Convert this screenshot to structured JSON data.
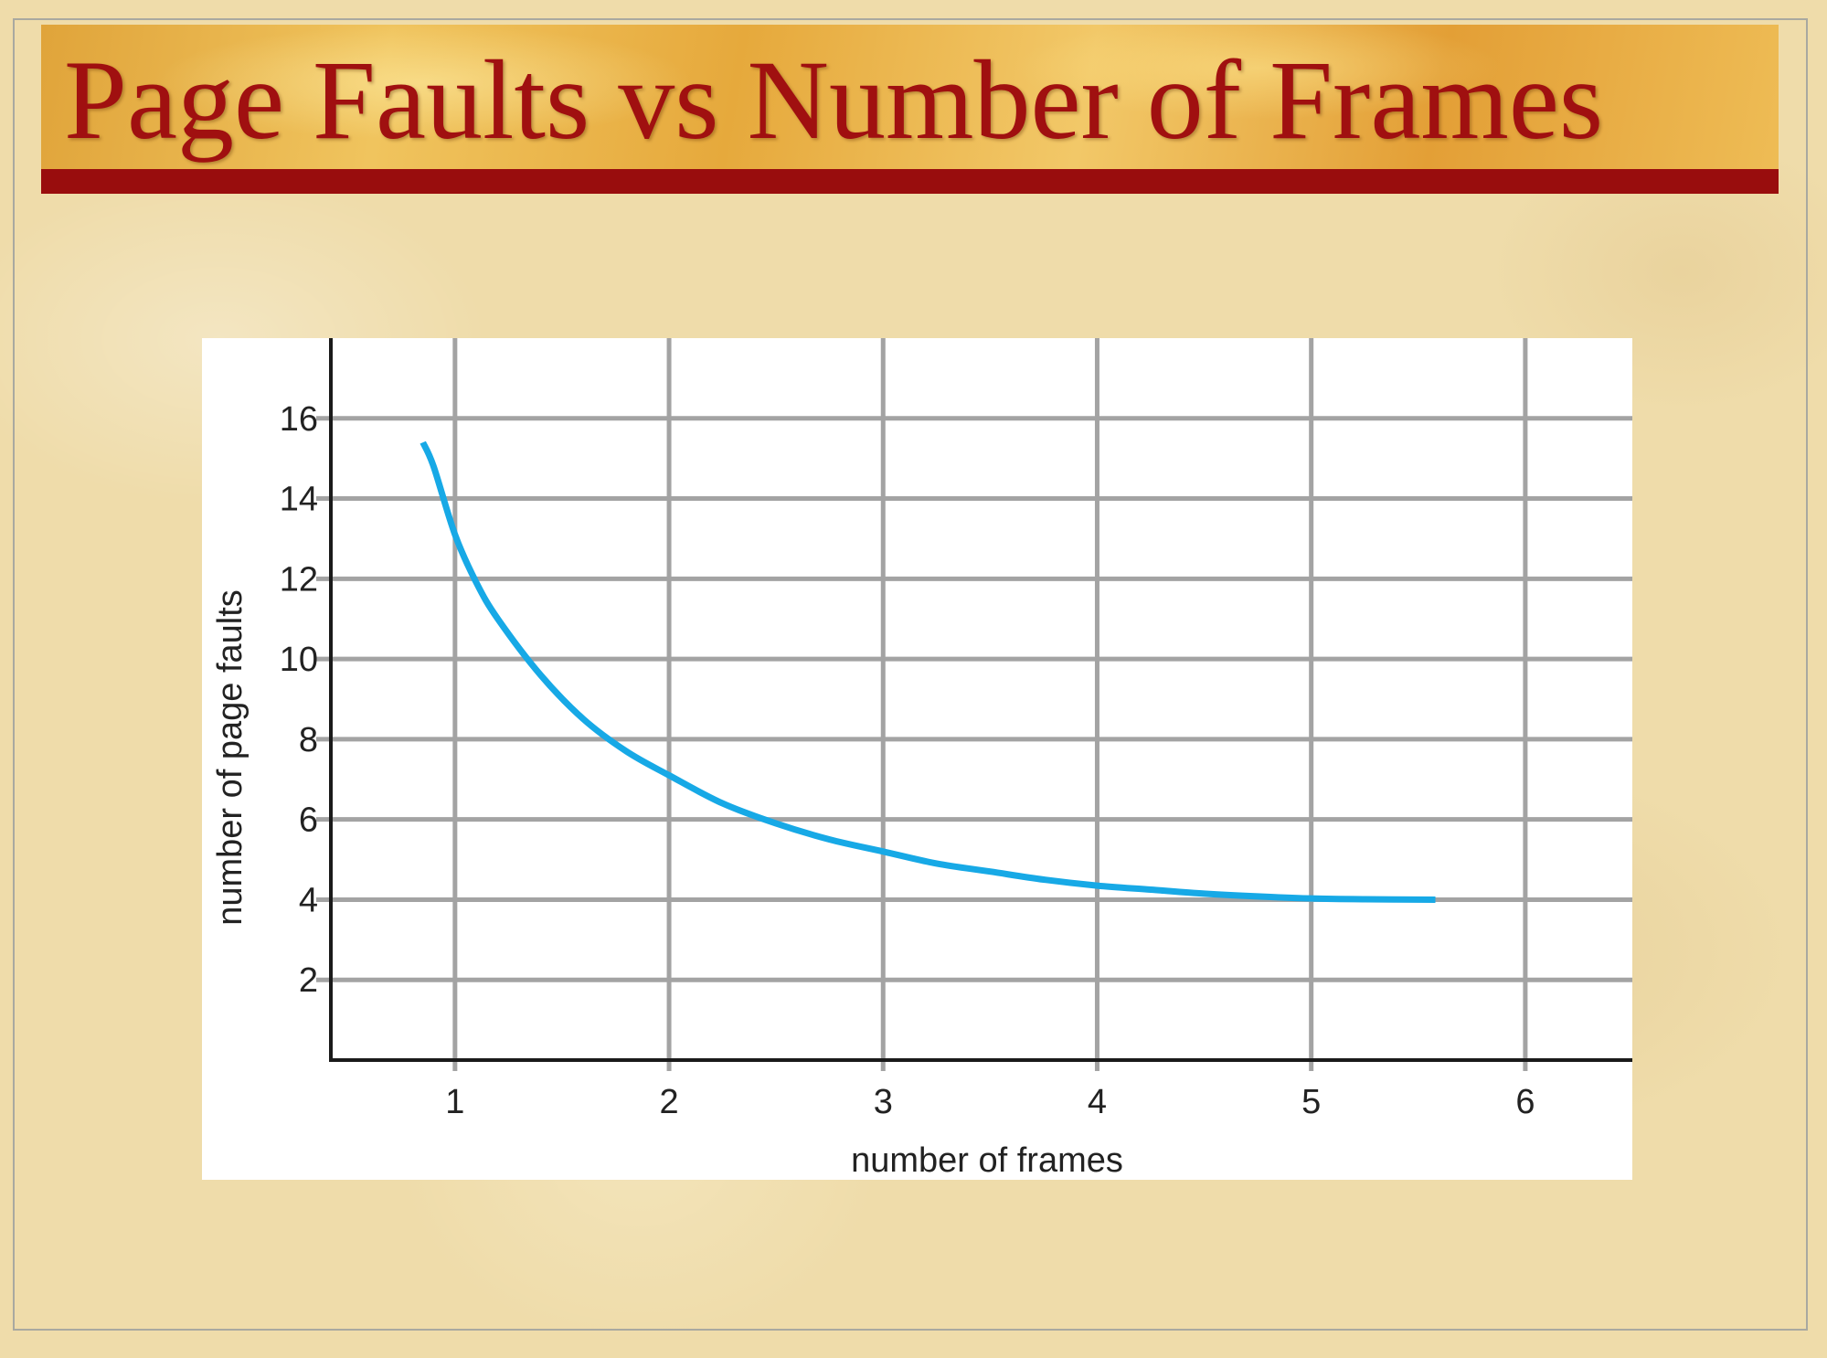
{
  "slide": {
    "title": "Page Faults vs Number of Frames"
  },
  "colors": {
    "title_text": "#a01010",
    "title_bar": "#990d0d",
    "curve": "#17a9e6",
    "grid": "#a3a3a3",
    "axis": "#1a1a1a"
  },
  "chart_data": {
    "type": "line",
    "title": "",
    "xlabel": "number of frames",
    "ylabel": "number of page faults",
    "x_ticks": [
      1,
      2,
      3,
      4,
      5,
      6
    ],
    "y_ticks": [
      2,
      4,
      6,
      8,
      10,
      12,
      14,
      16
    ],
    "xlim": [
      0.42,
      6.5
    ],
    "ylim": [
      0,
      18
    ],
    "grid": true,
    "series": [
      {
        "x": [
          0.85,
          0.9,
          1.0,
          1.1,
          1.2,
          1.4,
          1.6,
          1.8,
          2.0,
          2.25,
          2.5,
          2.75,
          3.0,
          3.25,
          3.5,
          3.75,
          4.0,
          4.25,
          4.5,
          4.75,
          5.0,
          5.25,
          5.58
        ],
        "y": [
          15.4,
          14.8,
          13.1,
          11.9,
          11.0,
          9.6,
          8.5,
          7.7,
          7.1,
          6.4,
          5.9,
          5.5,
          5.2,
          4.9,
          4.7,
          4.5,
          4.35,
          4.25,
          4.15,
          4.08,
          4.03,
          4.01,
          4.0
        ]
      }
    ]
  }
}
